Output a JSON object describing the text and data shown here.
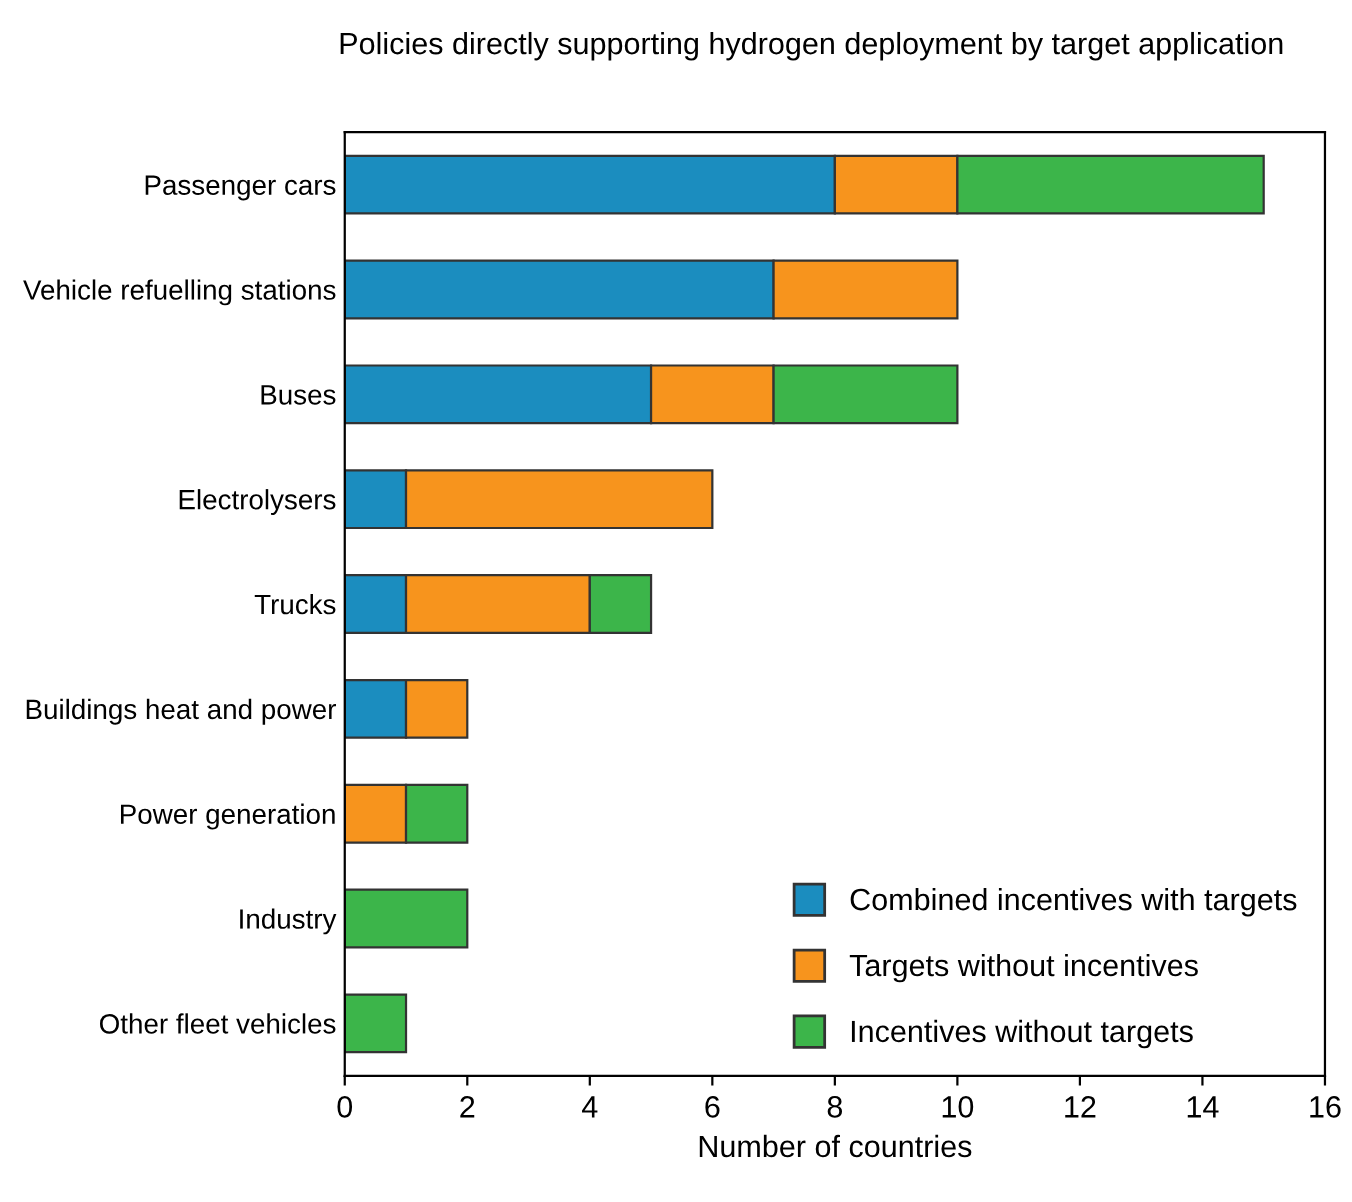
{
  "chart_data": {
    "type": "bar",
    "orientation": "horizontal",
    "stacked": true,
    "title": "Policies directly supporting hydrogen deployment by target application",
    "xlabel": "Number of countries",
    "categories": [
      "Passenger cars",
      "Vehicle refuelling stations",
      "Buses",
      "Electrolysers",
      "Trucks",
      "Buildings heat and power",
      "Power generation",
      "Industry",
      "Other fleet vehicles"
    ],
    "series": [
      {
        "name": "Combined incentives with targets",
        "color": "#1b8dbf",
        "values": [
          8,
          7,
          5,
          1,
          1,
          1,
          0,
          0,
          0
        ]
      },
      {
        "name": "Targets without incentives",
        "color": "#f7941d",
        "values": [
          2,
          3,
          2,
          5,
          3,
          1,
          1,
          0,
          0
        ]
      },
      {
        "name": "Incentives without targets",
        "color": "#3cb54a",
        "values": [
          5,
          0,
          3,
          0,
          1,
          0,
          1,
          2,
          1
        ]
      }
    ],
    "xlim": [
      0,
      16
    ],
    "xticks": [
      0,
      2,
      4,
      6,
      8,
      10,
      12,
      14,
      16
    ],
    "grid": false,
    "legend": "bottom right"
  }
}
